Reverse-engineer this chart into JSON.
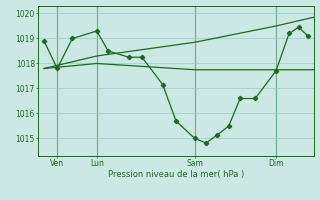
{
  "bg_color": "#cce8e4",
  "grid_color": "#99cccc",
  "line_color": "#1a6b1a",
  "title": "Pression niveau de la mer( hPa )",
  "yticks": [
    1015,
    1016,
    1017,
    1018,
    1019,
    1020
  ],
  "ylim": [
    1014.3,
    1020.3
  ],
  "xlim": [
    -0.3,
    14.3
  ],
  "xtick_positions": [
    0.7,
    2.8,
    8.0,
    12.3
  ],
  "xtick_labels": [
    "Ven",
    "Lun",
    "Sam",
    "Dim"
  ],
  "vlines": [
    0.7,
    2.8,
    8.0,
    12.3
  ],
  "series1_x": [
    0.0,
    0.7,
    1.5,
    2.8,
    3.4,
    4.5,
    5.2,
    6.3,
    7.0,
    8.0,
    8.6,
    9.2,
    9.8,
    10.4,
    11.2,
    12.3,
    13.0,
    13.5,
    14.0
  ],
  "series1_y": [
    1018.9,
    1017.8,
    1019.0,
    1019.3,
    1018.5,
    1018.25,
    1018.25,
    1017.15,
    1015.7,
    1015.0,
    1014.82,
    1015.15,
    1015.5,
    1016.6,
    1016.6,
    1017.7,
    1019.2,
    1019.45,
    1019.1
  ],
  "series2_x": [
    0.0,
    2.8,
    8.0,
    12.3,
    14.3
  ],
  "series2_y": [
    1017.8,
    1018.0,
    1017.75,
    1017.75,
    1017.75
  ],
  "series3_x": [
    0.0,
    2.8,
    8.0,
    12.3,
    14.3
  ],
  "series3_y": [
    1017.8,
    1018.3,
    1018.85,
    1019.5,
    1019.85
  ]
}
